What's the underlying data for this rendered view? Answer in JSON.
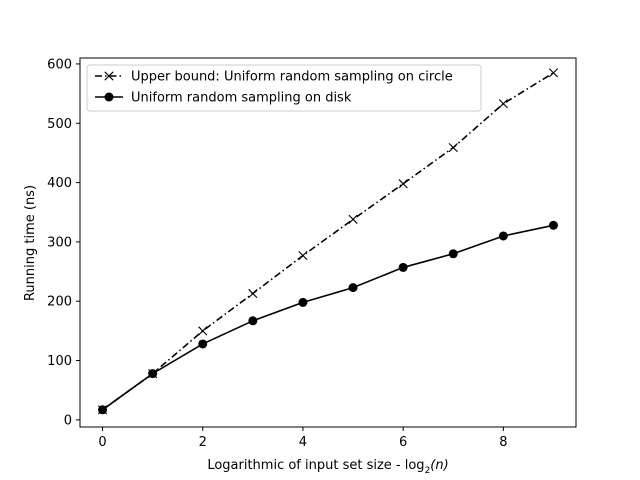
{
  "chart_data": {
    "type": "line",
    "title": "",
    "xlabel": "Logarithmic of input set size - log",
    "xlabel_subscript": "2",
    "xlabel_suffix": "(n)",
    "ylabel": "Running time (ns)",
    "xlim": [
      -0.45,
      9.45
    ],
    "ylim": [
      -12,
      610
    ],
    "xticks": [
      0,
      2,
      4,
      6,
      8
    ],
    "yticks": [
      0,
      100,
      200,
      300,
      400,
      500,
      600
    ],
    "grid": false,
    "legend_position": "top-left",
    "series": [
      {
        "name": "Upper bound: Uniform random sampling on circle",
        "color": "#000000",
        "line_style": "dashdot",
        "marker": "x",
        "x": [
          0,
          1,
          2,
          3,
          4,
          5,
          6,
          7,
          8,
          9
        ],
        "values": [
          17,
          78,
          150,
          213,
          277,
          338,
          398,
          459,
          533,
          585
        ]
      },
      {
        "name": "Uniform random sampling on disk",
        "color": "#000000",
        "line_style": "solid",
        "marker": "circle",
        "x": [
          0,
          1,
          2,
          3,
          4,
          5,
          6,
          7,
          8,
          9
        ],
        "values": [
          17,
          78,
          128,
          167,
          198,
          223,
          257,
          280,
          310,
          328
        ]
      }
    ]
  }
}
